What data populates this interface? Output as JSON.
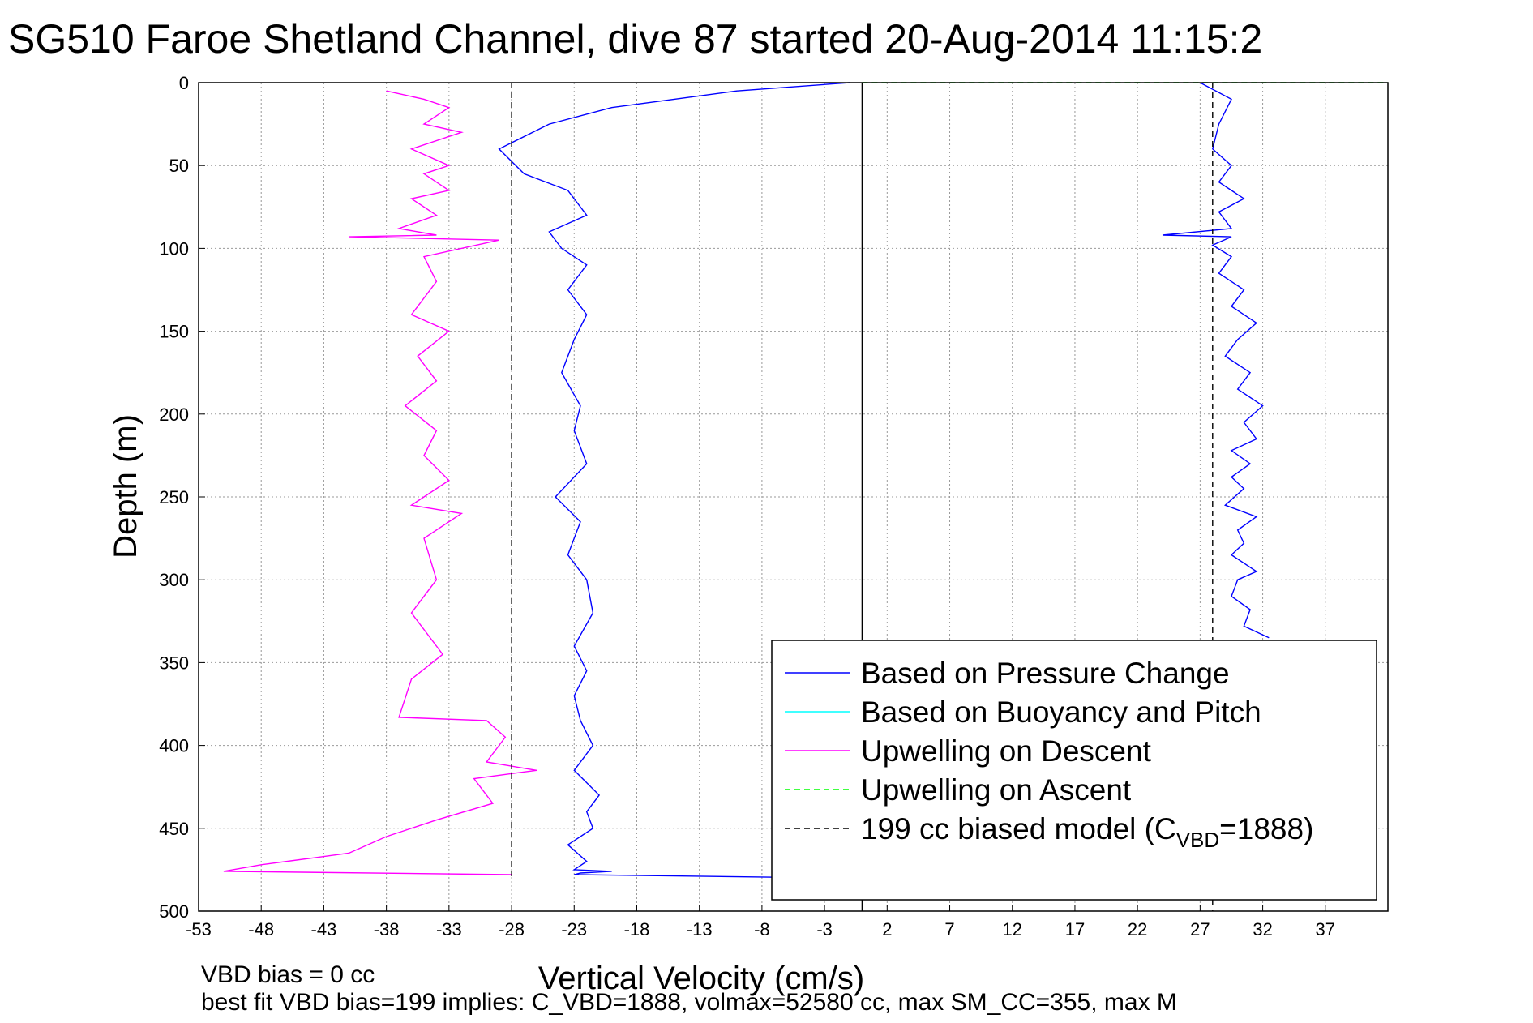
{
  "chart_data": {
    "type": "line",
    "title": "SG510 Faroe Shetland Channel, dive 87 started 20-Aug-2014 11:15:2",
    "xlabel": "Vertical Velocity (cm/s)",
    "ylabel": "Depth (m)",
    "xlim": [
      -53,
      42
    ],
    "ylim": [
      0,
      500
    ],
    "y_reversed": true,
    "grid": true,
    "x_ticks": [
      -53,
      -48,
      -43,
      -38,
      -33,
      -28,
      -23,
      -18,
      -13,
      -8,
      -3,
      2,
      7,
      12,
      17,
      22,
      27,
      32,
      37
    ],
    "y_ticks": [
      0,
      50,
      100,
      150,
      200,
      250,
      300,
      350,
      400,
      450,
      500
    ],
    "notes": [
      "VBD bias = 0 cc",
      "best fit VBD bias=199 implies: C_VBD=1888, volmax=52580 cc, max SM_CC=355, max M"
    ],
    "legend_position": "lower-right",
    "legend": [
      {
        "label": "Based on Pressure Change",
        "color": "#0000ff",
        "style": "solid"
      },
      {
        "label": "Based on Buoyancy and Pitch",
        "color": "#00ffff",
        "style": "solid"
      },
      {
        "label": "Upwelling on Descent",
        "color": "#ff00ff",
        "style": "solid"
      },
      {
        "label": "Upwelling on Ascent",
        "color": "#00ff00",
        "style": "dashed"
      },
      {
        "label": "199 cc biased model (C",
        "sub": "VBD",
        "suffix": "=1888)",
        "color": "#000000",
        "style": "dashed"
      }
    ],
    "series": [
      {
        "name": "Based on Pressure Change (descent)",
        "color": "#0000ff",
        "x": [
          -1,
          -10,
          -20,
          -25,
          -29,
          -27,
          -23.5,
          -22,
          -25,
          -24,
          -22,
          -23.5,
          -22,
          -23,
          -24,
          -22.5,
          -23,
          -22,
          -24.5,
          -22.5,
          -23.5,
          -22,
          -21.5,
          -23,
          -22,
          -23,
          -22.5,
          -21.5,
          -23,
          -21,
          -22,
          -21.5,
          -23.5,
          -22,
          -23,
          -20,
          -22.5,
          -23,
          -2
        ],
        "y": [
          0,
          5,
          15,
          25,
          40,
          55,
          65,
          80,
          90,
          100,
          110,
          125,
          140,
          155,
          175,
          195,
          210,
          230,
          250,
          265,
          285,
          300,
          320,
          340,
          355,
          370,
          385,
          400,
          415,
          430,
          440,
          450,
          460,
          470,
          475,
          476,
          477,
          478,
          480
        ]
      },
      {
        "name": "Based on Pressure Change (ascent)",
        "color": "#0000ff",
        "x": [
          32.5,
          30.5,
          31,
          29.5,
          30,
          31.5,
          29.5,
          30.5,
          30,
          31.5,
          29,
          30.5,
          29.5,
          31,
          29.5,
          31.5,
          30.5,
          32,
          30,
          31,
          29,
          30,
          31.5,
          29.5,
          30.5,
          28.5,
          29.5,
          28,
          29.5,
          24,
          29.5,
          28.5,
          30.5,
          28.5,
          29.5,
          28,
          28.5,
          29.5,
          27
        ],
        "y": [
          335,
          328,
          318,
          310,
          300,
          295,
          285,
          278,
          270,
          262,
          255,
          245,
          238,
          230,
          222,
          215,
          205,
          195,
          185,
          175,
          165,
          155,
          145,
          135,
          125,
          115,
          105,
          98,
          93,
          92,
          88,
          78,
          70,
          60,
          50,
          40,
          25,
          10,
          0
        ]
      },
      {
        "name": "Upwelling on Descent",
        "color": "#ff00ff",
        "x": [
          -38,
          -35,
          -33,
          -35,
          -32,
          -36,
          -33,
          -35,
          -33,
          -36,
          -34,
          -37,
          -34,
          -41,
          -29,
          -35,
          -34,
          -36,
          -33,
          -35.5,
          -34,
          -36.5,
          -34,
          -35,
          -33,
          -36,
          -32,
          -35,
          -34,
          -36,
          -33.5,
          -36,
          -37,
          -30,
          -28.5,
          -30,
          -26,
          -31,
          -29.5,
          -34,
          -38,
          -41,
          -48,
          -51,
          -28
        ],
        "y": [
          5,
          10,
          15,
          25,
          30,
          40,
          50,
          55,
          65,
          70,
          80,
          88,
          92,
          93,
          95,
          105,
          120,
          140,
          150,
          165,
          180,
          195,
          210,
          225,
          240,
          255,
          260,
          275,
          300,
          320,
          345,
          360,
          383,
          385,
          395,
          410,
          415,
          420,
          435,
          445,
          455,
          465,
          472,
          476,
          478
        ]
      },
      {
        "name": "199 cc biased model (descent)",
        "color": "#000000",
        "dashed": true,
        "x": [
          -28,
          -28
        ],
        "y": [
          0,
          480
        ]
      },
      {
        "name": "199 cc biased model (ascent)",
        "color": "#000000",
        "dashed": true,
        "x": [
          28,
          28
        ],
        "y": [
          0,
          500
        ]
      },
      {
        "name": "Upwelling on Ascent",
        "color": "#00ff00",
        "dashed": true,
        "x": [
          0,
          42
        ],
        "y": [
          0,
          0
        ]
      },
      {
        "name": "Zero line",
        "color": "#000000",
        "x": [
          0,
          0
        ],
        "y": [
          0,
          500
        ]
      }
    ]
  }
}
